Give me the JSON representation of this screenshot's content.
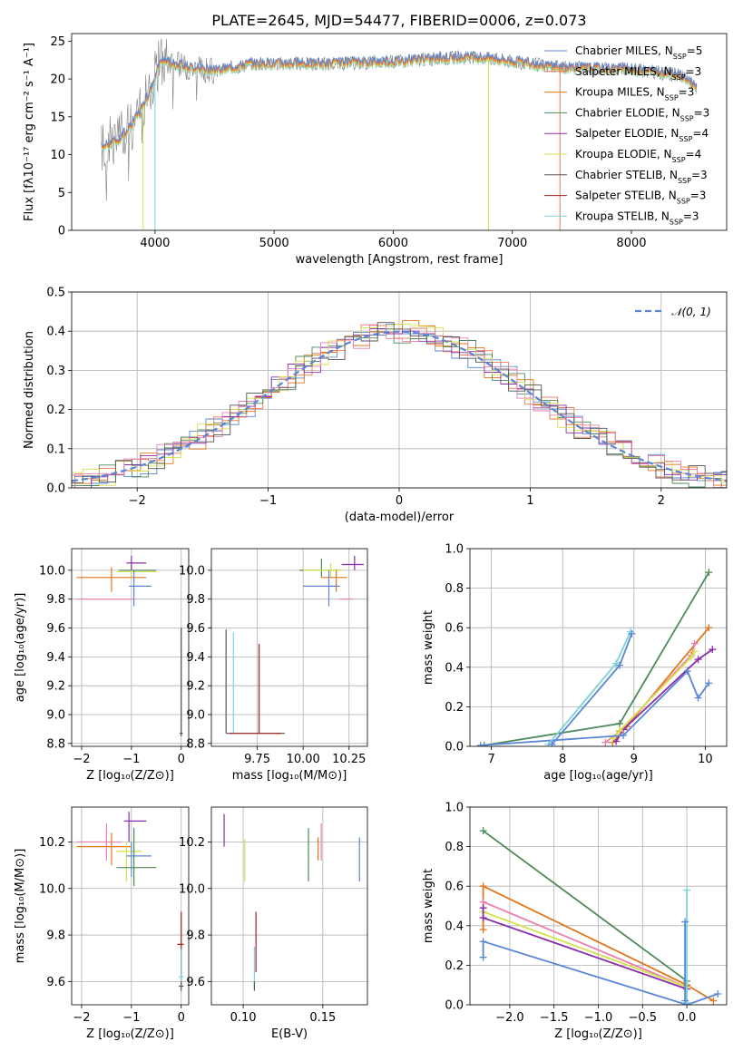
{
  "colors": {
    "chabrier_miles": "#5b86d6",
    "salpeter_miles": "#ee7755",
    "kroupa_miles": "#e2761a",
    "chabrier_elodie": "#4d8a5a",
    "salpeter_elodie": "#8a2ea9",
    "kroupa_elodie": "#d6e04a",
    "chabrier_stelib": "#555555",
    "salpeter_stelib": "#a81e1e",
    "kroupa_stelib": "#7ad4d9",
    "pink": "#e87fb0",
    "data": "#808080"
  },
  "chart_data": [
    {
      "id": "spectrum",
      "type": "line",
      "title": "PLATE=2645, MJD=54477, FIBERID=0006, z=0.073",
      "xlabel": "wavelength [Angstrom, rest frame]",
      "ylabel": "Flux [fλ10⁻¹⁷ erg cm⁻² s⁻¹ A⁻¹]",
      "xlim": [
        3300,
        8800
      ],
      "ylim": [
        0,
        26
      ],
      "xticks": [
        4000,
        5000,
        6000,
        7000,
        8000
      ],
      "yticks": [
        0,
        5,
        10,
        15,
        20,
        25
      ],
      "legend": [
        "Chabrier MILES, N_SSP=5",
        "Salpeter MILES, N_SSP=3",
        "Kroupa MILES, N_SSP=3",
        "Chabrier ELODIE, N_SSP=3",
        "Salpeter ELODIE, N_SSP=4",
        "Kroupa ELODIE, N_SSP=4",
        "Chabrier STELIB, N_SSP=3",
        "Salpeter STELIB, N_SSP=3",
        "Kroupa STELIB, N_SSP=3"
      ],
      "legend_labels": [
        [
          "Chabrier MILES, N",
          "SSP",
          "=5"
        ],
        [
          "Salpeter MILES, N",
          "SSP",
          "=3"
        ],
        [
          "Kroupa MILES, N",
          "SSP",
          "=3"
        ],
        [
          "Chabrier ELODIE, N",
          "SSP",
          "=3"
        ],
        [
          "Salpeter ELODIE, N",
          "SSP",
          "=4"
        ],
        [
          "Kroupa ELODIE, N",
          "SSP",
          "=4"
        ],
        [
          "Chabrier STELIB, N",
          "SSP",
          "=3"
        ],
        [
          "Salpeter STELIB, N",
          "SSP",
          "=3"
        ],
        [
          "Kroupa STELIB, N",
          "SSP",
          "=3"
        ]
      ],
      "legend_placement": "right",
      "continuum_x": [
        3550,
        3700,
        3850,
        3950,
        4050,
        4300,
        4500,
        4800,
        5000,
        5500,
        6000,
        6500,
        6800,
        7000,
        7400,
        8000,
        8400,
        8550
      ],
      "continuum_y": [
        11,
        12,
        15,
        18,
        22.5,
        21.5,
        21,
        22,
        22,
        22,
        22.3,
        22.8,
        22.8,
        22.3,
        21.5,
        21.3,
        20.5,
        19
      ]
    },
    {
      "id": "residuals",
      "type": "histogram",
      "xlabel": "(data-model)/error",
      "ylabel": "Normed distribution",
      "xlim": [
        -2.5,
        2.5
      ],
      "ylim": [
        0,
        0.5
      ],
      "xticks": [
        -2,
        -1,
        0,
        1,
        2
      ],
      "yticks": [
        0.0,
        0.1,
        0.2,
        0.3,
        0.4,
        0.5
      ],
      "legend": [
        "𝒩(0, 1)"
      ],
      "legend_placement": "top-right",
      "grid": true
    },
    {
      "id": "age_vs_Z",
      "type": "errorbar",
      "xlabel": "Z [log₁₀(Z/Z⊙)]",
      "ylabel": "age  [log₁₀(age/yr)]",
      "xlim": [
        -2.2,
        0.15
      ],
      "ylim": [
        8.78,
        10.15
      ],
      "xticks": [
        -2,
        -1,
        0
      ],
      "yticks": [
        8.8,
        9.0,
        9.2,
        9.4,
        9.6,
        9.8,
        10.0
      ],
      "grid": true,
      "points": [
        {
          "c": "kroupa_miles",
          "x": -1.4,
          "xl": -2.1,
          "xh": -0.7,
          "y": 9.95,
          "yl": 9.85,
          "yh": 10.02
        },
        {
          "c": "pink",
          "x": -1.5,
          "xl": -2.1,
          "xh": -0.95,
          "y": 9.8,
          "yl": 9.8,
          "yh": 9.8
        },
        {
          "c": "chabrier_elodie",
          "x": -1.0,
          "xl": -1.25,
          "xh": -0.5,
          "y": 10.0,
          "yl": 9.95,
          "yh": 10.05
        },
        {
          "c": "kroupa_elodie",
          "x": -1.0,
          "xl": -1.3,
          "xh": -0.5,
          "y": 9.99,
          "yl": 9.95,
          "yh": 10.04
        },
        {
          "c": "salpeter_elodie",
          "x": -1.0,
          "xl": -1.1,
          "xh": -0.7,
          "y": 10.05,
          "yl": 10.0,
          "yh": 10.1
        },
        {
          "c": "chabrier_miles",
          "x": -0.95,
          "xl": -1.05,
          "xh": -0.6,
          "y": 9.89,
          "yl": 9.75,
          "yh": 10.0
        },
        {
          "c": "kroupa_stelib",
          "x": 0.0,
          "xl": -0.03,
          "xh": 0.03,
          "y": 8.87,
          "yl": 8.85,
          "yh": 9.6
        },
        {
          "c": "chabrier_stelib",
          "x": 0.0,
          "xl": -0.03,
          "xh": 0.03,
          "y": 8.87,
          "yl": 8.85,
          "yh": 9.6
        }
      ]
    },
    {
      "id": "age_vs_mass",
      "type": "errorbar",
      "xlabel": "mass [log₁₀(M/M⊙)]",
      "ylabel": "",
      "xlim": [
        9.5,
        10.35
      ],
      "ylim": [
        8.78,
        10.15
      ],
      "xticks": [
        9.75,
        10.0,
        10.25
      ],
      "xticklabels": [
        "9.75",
        "10.00",
        "10.25"
      ],
      "yticks": [
        8.8,
        9.0,
        9.2,
        9.4,
        9.6,
        9.8,
        10.0
      ],
      "grid": true,
      "points": [
        {
          "c": "chabrier_stelib",
          "x": 9.58,
          "xl": 9.58,
          "xh": 9.9,
          "y": 8.87,
          "yl": 8.87,
          "yh": 9.59
        },
        {
          "c": "kroupa_stelib",
          "x": 9.62,
          "xl": 9.62,
          "xh": 9.85,
          "y": 8.87,
          "yl": 8.87,
          "yh": 9.57
        },
        {
          "c": "salpeter_stelib",
          "x": 9.76,
          "xl": 9.6,
          "xh": 9.88,
          "y": 8.87,
          "yl": 8.87,
          "yh": 9.49
        },
        {
          "c": "chabrier_elodie",
          "x": 10.1,
          "xl": 9.98,
          "xh": 10.2,
          "y": 10.0,
          "yl": 9.95,
          "yh": 10.08
        },
        {
          "c": "kroupa_elodie",
          "x": 10.15,
          "xl": 10.0,
          "xh": 10.22,
          "y": 10.0,
          "yl": 9.95,
          "yh": 10.05
        },
        {
          "c": "salpeter_elodie",
          "x": 10.28,
          "xl": 10.21,
          "xh": 10.33,
          "y": 10.04,
          "yl": 10.0,
          "yh": 10.1
        },
        {
          "c": "kroupa_miles",
          "x": 10.18,
          "xl": 10.1,
          "xh": 10.24,
          "y": 9.95,
          "yl": 9.85,
          "yh": 10.0
        },
        {
          "c": "chabrier_miles",
          "x": 10.14,
          "xl": 10.0,
          "xh": 10.2,
          "y": 9.89,
          "yl": 9.75,
          "yh": 10.0
        },
        {
          "c": "pink",
          "x": 10.2,
          "xl": 10.2,
          "xh": 10.27,
          "y": 9.8,
          "yl": 9.8,
          "yh": 9.8
        }
      ]
    },
    {
      "id": "mw_vs_age",
      "type": "line",
      "xlabel": "age  [log₁₀(age/yr)]",
      "ylabel": "mass weight",
      "xlim": [
        6.7,
        10.3
      ],
      "ylim": [
        0,
        1.0
      ],
      "xticks": [
        7,
        8,
        9,
        10
      ],
      "yticks": [
        0.0,
        0.2,
        0.4,
        0.6,
        0.8,
        1.0
      ],
      "grid": true,
      "series": [
        {
          "c": "chabrier_elodie",
          "x": [
            6.9,
            8.8,
            10.05
          ],
          "y": [
            0.005,
            0.115,
            0.88
          ]
        },
        {
          "c": "kroupa_miles",
          "x": [
            8.7,
            8.9,
            10.05
          ],
          "y": [
            0.02,
            0.1,
            0.6
          ]
        },
        {
          "c": "salpeter_elodie",
          "x": [
            8.75,
            8.85,
            9.9,
            10.1
          ],
          "y": [
            0.025,
            0.085,
            0.44,
            0.49
          ]
        },
        {
          "c": "pink",
          "x": [
            8.6,
            8.8,
            9.8,
            9.85
          ],
          "y": [
            0.02,
            0.075,
            0.46,
            0.52
          ]
        },
        {
          "c": "kroupa_elodie",
          "x": [
            8.7,
            8.8,
            9.8,
            9.85
          ],
          "y": [
            0.04,
            0.08,
            0.45,
            0.48
          ]
        },
        {
          "c": "chabrier_miles",
          "x": [
            6.85,
            8.85,
            9.75,
            9.9,
            10.05
          ],
          "y": [
            0.005,
            0.055,
            0.38,
            0.245,
            0.32
          ]
        },
        {
          "c": "kroupa_stelib",
          "x": [
            7.8,
            8.75,
            8.95
          ],
          "y": [
            0.01,
            0.42,
            0.58
          ]
        },
        {
          "c": "chabrier_miles",
          "x": [
            7.85,
            8.8,
            8.97
          ],
          "y": [
            0.01,
            0.41,
            0.57
          ]
        }
      ]
    },
    {
      "id": "mass_vs_Z",
      "type": "errorbar",
      "xlabel": "Z [log₁₀(Z/Z⊙)]",
      "ylabel": "mass [log₁₀(M/M⊙)]",
      "xlim": [
        -2.2,
        0.15
      ],
      "ylim": [
        9.5,
        10.35
      ],
      "xticks": [
        -2,
        -1,
        0
      ],
      "yticks": [
        9.6,
        9.8,
        10.0,
        10.2
      ],
      "grid": true,
      "points": [
        {
          "c": "pink",
          "x": -1.5,
          "xl": -2.1,
          "xh": -1.2,
          "y": 10.2,
          "yl": 10.12,
          "yh": 10.28
        },
        {
          "c": "kroupa_miles",
          "x": -1.4,
          "xl": -2.1,
          "xh": -1.0,
          "y": 10.18,
          "yl": 10.1,
          "yh": 10.24
        },
        {
          "c": "salpeter_elodie",
          "x": -1.05,
          "xl": -1.15,
          "xh": -0.7,
          "y": 10.29,
          "yl": 10.2,
          "yh": 10.33
        },
        {
          "c": "kroupa_elodie",
          "x": -1.1,
          "xl": -1.3,
          "xh": -0.8,
          "y": 10.16,
          "yl": 10.03,
          "yh": 10.2
        },
        {
          "c": "chabrier_miles",
          "x": -1.0,
          "xl": -1.1,
          "xh": -0.6,
          "y": 10.14,
          "yl": 10.05,
          "yh": 10.2
        },
        {
          "c": "chabrier_elodie",
          "x": -0.95,
          "xl": -1.3,
          "xh": -0.5,
          "y": 10.09,
          "yl": 10.01,
          "yh": 10.26
        },
        {
          "c": "salpeter_stelib",
          "x": 0.0,
          "xl": -0.08,
          "xh": 0.05,
          "y": 9.76,
          "yl": 9.6,
          "yh": 9.9
        },
        {
          "c": "kroupa_stelib",
          "x": 0.0,
          "xl": -0.05,
          "xh": 0.05,
          "y": 9.62,
          "yl": 9.59,
          "yh": 9.74
        },
        {
          "c": "chabrier_stelib",
          "x": 0.0,
          "xl": -0.05,
          "xh": 0.05,
          "y": 9.58,
          "yl": 9.56,
          "yh": 9.6
        }
      ]
    },
    {
      "id": "mass_vs_ebv",
      "type": "errorbar",
      "xlabel": "E(B-V)",
      "ylabel": "",
      "xlim": [
        0.08,
        0.178
      ],
      "ylim": [
        9.5,
        10.35
      ],
      "xticks": [
        0.1,
        0.15
      ],
      "xticklabels": [
        "0.10",
        "0.15"
      ],
      "yticks": [
        9.6,
        9.8,
        10.0,
        10.2
      ],
      "grid": true,
      "points": [
        {
          "c": "salpeter_elodie",
          "x": 0.088,
          "xl": 0.088,
          "xh": 0.088,
          "y": 10.22,
          "yl": 10.18,
          "yh": 10.32
        },
        {
          "c": "kroupa_elodie",
          "x": 0.101,
          "xl": 0.101,
          "xh": 0.101,
          "y": 10.16,
          "yl": 10.03,
          "yh": 10.21
        },
        {
          "c": "salpeter_stelib",
          "x": 0.108,
          "xl": 0.108,
          "xh": 0.108,
          "y": 9.76,
          "yl": 9.64,
          "yh": 9.9
        },
        {
          "c": "kroupa_stelib",
          "x": 0.107,
          "xl": 0.107,
          "xh": 0.107,
          "y": 9.62,
          "yl": 9.58,
          "yh": 9.75
        },
        {
          "c": "chabrier_stelib",
          "x": 0.107,
          "xl": 0.107,
          "xh": 0.107,
          "y": 9.58,
          "yl": 9.56,
          "yh": 9.6
        },
        {
          "c": "chabrier_elodie",
          "x": 0.141,
          "xl": 0.141,
          "xh": 0.141,
          "y": 10.09,
          "yl": 10.03,
          "yh": 10.26
        },
        {
          "c": "kroupa_miles",
          "x": 0.147,
          "xl": 0.147,
          "xh": 0.147,
          "y": 10.18,
          "yl": 10.12,
          "yh": 10.22
        },
        {
          "c": "pink",
          "x": 0.149,
          "xl": 0.149,
          "xh": 0.149,
          "y": 10.2,
          "yl": 10.12,
          "yh": 10.28
        },
        {
          "c": "chabrier_miles",
          "x": 0.173,
          "xl": 0.173,
          "xh": 0.173,
          "y": 10.14,
          "yl": 10.03,
          "yh": 10.22
        }
      ]
    },
    {
      "id": "mw_vs_Z",
      "type": "line",
      "xlabel": "Z [log₁₀(Z/Z⊙)]",
      "ylabel": "mass weight",
      "xlim": [
        -2.45,
        0.45
      ],
      "ylim": [
        0,
        1.0
      ],
      "xticks": [
        -2.0,
        -1.5,
        -1.0,
        -0.5,
        0.0
      ],
      "xticklabels": [
        "−2.0",
        "−1.5",
        "−1.0",
        "−0.5",
        "0.0"
      ],
      "yticks": [
        0.0,
        0.2,
        0.4,
        0.6,
        0.8,
        1.0
      ],
      "grid": true,
      "series": [
        {
          "c": "chabrier_elodie",
          "x": [
            -2.3,
            0.0,
            0.0
          ],
          "y": [
            0.88,
            0.12,
            0.0
          ]
        },
        {
          "c": "kroupa_miles",
          "x": [
            -2.3,
            -2.3,
            0.0,
            0.3
          ],
          "y": [
            0.38,
            0.6,
            0.1,
            0.02
          ]
        },
        {
          "c": "pink",
          "x": [
            -2.3,
            0.0
          ],
          "y": [
            0.52,
            0.09
          ]
        },
        {
          "c": "kroupa_elodie",
          "x": [
            -2.3,
            0.0
          ],
          "y": [
            0.47,
            0.09
          ]
        },
        {
          "c": "salpeter_elodie",
          "x": [
            -2.3,
            -2.3,
            0.0
          ],
          "y": [
            0.49,
            0.44,
            0.08
          ]
        },
        {
          "c": "chabrier_miles",
          "x": [
            -2.3,
            -2.3,
            0.0,
            0.35
          ],
          "y": [
            0.24,
            0.32,
            0.0,
            0.055
          ]
        },
        {
          "c": "kroupa_stelib",
          "x": [
            0.0,
            0.0
          ],
          "y": [
            0.01,
            0.58
          ]
        },
        {
          "c": "chabrier_miles",
          "x": [
            -0.02,
            -0.02
          ],
          "y": [
            0.02,
            0.42
          ]
        }
      ]
    }
  ]
}
